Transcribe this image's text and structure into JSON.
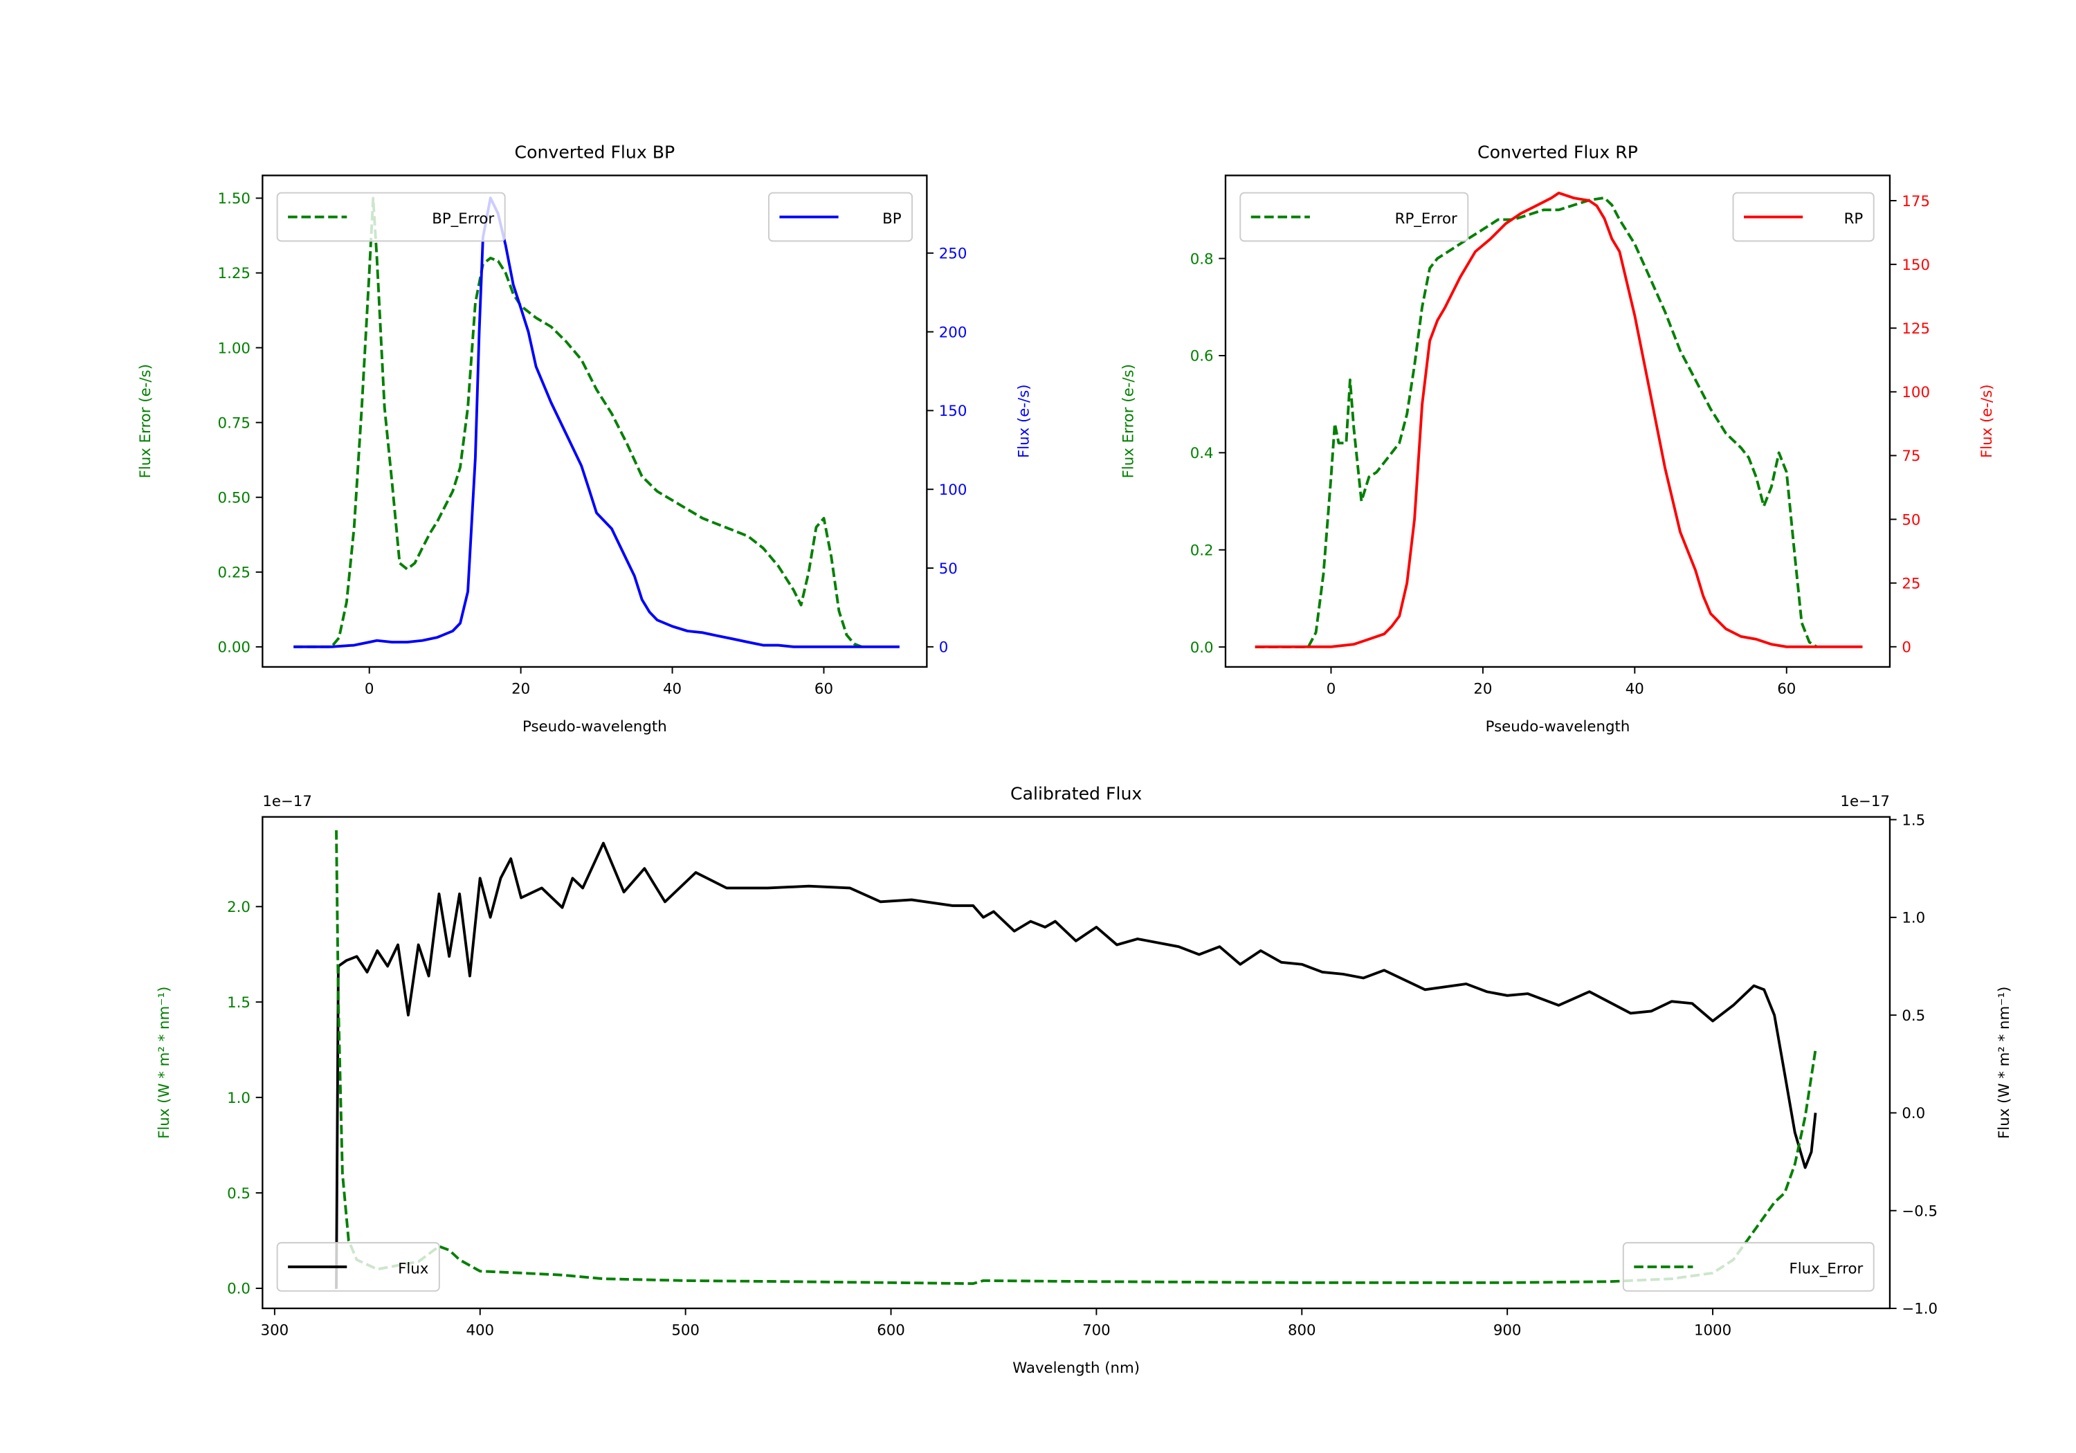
{
  "chart_data": [
    {
      "type": "line",
      "title": "Converted Flux BP",
      "xlabel": "Pseudo-wavelength",
      "ylabel_left": "Flux Error (e-/s)",
      "ylabel_right": "Flux (e-/s)",
      "xlim": [
        -14.1,
        73.6
      ],
      "ylim_left": [
        -0.067,
        1.576
      ],
      "ylim_right": [
        -12.75,
        299.3
      ],
      "xticks": [
        0,
        20,
        40,
        60
      ],
      "yticks_left": [
        "0.00",
        "0.25",
        "0.50",
        "0.75",
        "1.00",
        "1.25",
        "1.50"
      ],
      "yticks_right": [
        "0",
        "50",
        "100",
        "150",
        "200",
        "250"
      ],
      "left_color": "#008000",
      "right_color": "#0000ff",
      "series": [
        {
          "name": "BP_Error",
          "axis": "left",
          "style": "dashed",
          "color": "#008000",
          "x": [
            -10,
            -5,
            -4,
            -3,
            -2,
            -1,
            0,
            0.5,
            1,
            2,
            3,
            4,
            5,
            6,
            7,
            8,
            9,
            10,
            11,
            12,
            13,
            14,
            15,
            16,
            17,
            18,
            19,
            20,
            22,
            24,
            26,
            28,
            30,
            32,
            34,
            36,
            38,
            40,
            42,
            44,
            46,
            48,
            50,
            52,
            54,
            56,
            57,
            58,
            59,
            60,
            61,
            62,
            63,
            64,
            65
          ],
          "y": [
            0,
            0,
            0.03,
            0.15,
            0.4,
            0.8,
            1.25,
            1.5,
            1.3,
            0.8,
            0.55,
            0.28,
            0.26,
            0.28,
            0.33,
            0.38,
            0.42,
            0.47,
            0.52,
            0.6,
            0.8,
            1.15,
            1.28,
            1.3,
            1.29,
            1.25,
            1.18,
            1.14,
            1.1,
            1.07,
            1.02,
            0.96,
            0.86,
            0.78,
            0.68,
            0.57,
            0.52,
            0.49,
            0.46,
            0.43,
            0.41,
            0.39,
            0.37,
            0.33,
            0.27,
            0.19,
            0.14,
            0.25,
            0.4,
            0.43,
            0.3,
            0.12,
            0.04,
            0.01,
            0
          ]
        },
        {
          "name": "BP",
          "axis": "right",
          "style": "solid",
          "color": "#0000ff",
          "x": [
            -10,
            -5,
            -2,
            0,
            1,
            3,
            5,
            7,
            9,
            11,
            12,
            13,
            14,
            14.5,
            15,
            16,
            17,
            18,
            19,
            20,
            21,
            22,
            24,
            26,
            28,
            29,
            30,
            32,
            34,
            35,
            36,
            37,
            38,
            40,
            42,
            44,
            46,
            48,
            50,
            52,
            54,
            56,
            60,
            70
          ],
          "y": [
            0,
            0,
            1,
            3,
            4,
            3,
            3,
            4,
            6,
            10,
            15,
            35,
            120,
            200,
            260,
            285,
            275,
            255,
            230,
            215,
            200,
            178,
            155,
            135,
            115,
            100,
            85,
            75,
            55,
            45,
            30,
            22,
            17,
            13,
            10,
            9,
            7,
            5,
            3,
            1,
            1,
            0,
            0,
            0
          ]
        }
      ],
      "legend": [
        "top-left: BP_Error",
        "top-right: BP"
      ]
    },
    {
      "type": "line",
      "title": "Converted Flux RP",
      "xlabel": "Pseudo-wavelength",
      "ylabel_left": "Flux Error (e-/s)",
      "ylabel_right": "Flux (e-/s)",
      "xlim": [
        -13.9,
        73.6
      ],
      "ylim_left": [
        -0.041,
        0.971
      ],
      "ylim_right": [
        -7.9,
        184.9
      ],
      "xticks": [
        0,
        20,
        40,
        60
      ],
      "yticks_left": [
        "0.0",
        "0.2",
        "0.4",
        "0.6",
        "0.8"
      ],
      "yticks_right": [
        "0",
        "25",
        "50",
        "75",
        "100",
        "125",
        "150",
        "175"
      ],
      "left_color": "#008000",
      "right_color": "#ff0000",
      "series": [
        {
          "name": "RP_Error",
          "axis": "left",
          "style": "dashed",
          "color": "#008000",
          "x": [
            -10,
            -3,
            -2,
            -1,
            0,
            0.5,
            1,
            2,
            2.5,
            3,
            4,
            5,
            6,
            7,
            9,
            10,
            11,
            12,
            13,
            14,
            16,
            18,
            20,
            22,
            24,
            26,
            28,
            30,
            32,
            34,
            36,
            37,
            38,
            40,
            42,
            44,
            46,
            48,
            50,
            52,
            54,
            55,
            56,
            57,
            58,
            59,
            60,
            61,
            62,
            63,
            64
          ],
          "y": [
            0,
            0,
            0.03,
            0.15,
            0.35,
            0.46,
            0.42,
            0.42,
            0.55,
            0.45,
            0.3,
            0.35,
            0.36,
            0.38,
            0.42,
            0.48,
            0.58,
            0.7,
            0.78,
            0.8,
            0.82,
            0.84,
            0.86,
            0.88,
            0.88,
            0.89,
            0.9,
            0.9,
            0.91,
            0.92,
            0.925,
            0.91,
            0.88,
            0.83,
            0.76,
            0.69,
            0.61,
            0.55,
            0.49,
            0.44,
            0.41,
            0.39,
            0.35,
            0.29,
            0.33,
            0.4,
            0.36,
            0.2,
            0.05,
            0.01,
            0
          ]
        },
        {
          "name": "RP",
          "axis": "right",
          "style": "solid",
          "color": "#ff0000",
          "x": [
            -10,
            0,
            3,
            5,
            7,
            8,
            9,
            10,
            11,
            12,
            13,
            14,
            15,
            17,
            19,
            21,
            23,
            25,
            27,
            29,
            30,
            32,
            34,
            35,
            36,
            37,
            38,
            40,
            42,
            44,
            46,
            48,
            49,
            50,
            52,
            54,
            56,
            58,
            60,
            70
          ],
          "y": [
            0,
            0,
            1,
            3,
            5,
            8,
            12,
            25,
            50,
            95,
            120,
            128,
            133,
            145,
            155,
            160,
            166,
            170,
            173,
            176,
            178,
            176,
            175,
            173,
            168,
            160,
            155,
            130,
            100,
            70,
            45,
            30,
            20,
            13,
            7,
            4,
            3,
            1,
            0,
            0
          ]
        }
      ],
      "legend": [
        "top-left: RP_Error",
        "top-right: RP"
      ]
    },
    {
      "type": "line",
      "title": "Calibrated Flux",
      "xlabel": "Wavelength (nm)",
      "ylabel_left": "Flux (W * m² * nm⁻¹)",
      "ylabel_right": "Flux (W * m² * nm⁻¹)",
      "offset_left": "1e−17",
      "offset_right": "1e−17",
      "xlim": [
        294.1,
        1086.2
      ],
      "ylim_left": [
        -0.105,
        2.47
      ],
      "ylim_right": [
        -1.0,
        1.514
      ],
      "xticks": [
        300,
        400,
        500,
        600,
        700,
        800,
        900,
        1000
      ],
      "yticks_left": [
        "0.0",
        "0.5",
        "1.0",
        "1.5",
        "2.0"
      ],
      "yticks_right": [
        "−1.0",
        "−0.5",
        "0.0",
        "0.5",
        "1.0",
        "1.5"
      ],
      "left_color": "#008000",
      "right_color": "#000000",
      "series": [
        {
          "name": "Flux",
          "axis": "right",
          "style": "solid",
          "color": "#000000",
          "x": [
            330,
            331,
            335,
            340,
            345,
            350,
            355,
            360,
            365,
            370,
            375,
            380,
            385,
            390,
            395,
            400,
            405,
            410,
            415,
            420,
            430,
            440,
            445,
            450,
            460,
            470,
            480,
            490,
            505,
            520,
            540,
            560,
            580,
            595,
            610,
            630,
            640,
            645,
            650,
            660,
            668,
            675,
            680,
            690,
            700,
            710,
            720,
            740,
            750,
            760,
            770,
            780,
            790,
            800,
            810,
            820,
            830,
            840,
            860,
            880,
            890,
            900,
            910,
            925,
            940,
            960,
            970,
            980,
            990,
            1000,
            1010,
            1020,
            1025,
            1030,
            1035,
            1040,
            1045,
            1048,
            1050
          ],
          "y": [
            -0.9,
            0.75,
            0.78,
            0.8,
            0.72,
            0.83,
            0.75,
            0.86,
            0.5,
            0.86,
            0.7,
            1.12,
            0.8,
            1.12,
            0.7,
            1.2,
            1.0,
            1.2,
            1.3,
            1.1,
            1.15,
            1.05,
            1.2,
            1.15,
            1.38,
            1.13,
            1.25,
            1.08,
            1.23,
            1.15,
            1.15,
            1.16,
            1.15,
            1.08,
            1.09,
            1.06,
            1.06,
            1.0,
            1.03,
            0.93,
            0.98,
            0.95,
            0.98,
            0.88,
            0.95,
            0.86,
            0.89,
            0.85,
            0.81,
            0.85,
            0.76,
            0.83,
            0.77,
            0.76,
            0.72,
            0.71,
            0.69,
            0.73,
            0.63,
            0.66,
            0.62,
            0.6,
            0.61,
            0.55,
            0.62,
            0.51,
            0.52,
            0.57,
            0.56,
            0.47,
            0.55,
            0.65,
            0.63,
            0.5,
            0.2,
            -0.1,
            -0.28,
            -0.2,
            0.0
          ]
        },
        {
          "name": "Flux_Error",
          "axis": "left",
          "style": "dashed",
          "color": "#008000",
          "x": [
            330,
            331,
            333,
            336,
            340,
            350,
            360,
            370,
            380,
            385,
            390,
            400,
            420,
            440,
            460,
            500,
            550,
            600,
            640,
            645,
            700,
            800,
            900,
            950,
            980,
            1000,
            1010,
            1020,
            1030,
            1035,
            1040,
            1045,
            1050
          ],
          "y": [
            2.4,
            1.5,
            0.6,
            0.25,
            0.15,
            0.1,
            0.12,
            0.14,
            0.22,
            0.2,
            0.15,
            0.09,
            0.08,
            0.07,
            0.05,
            0.04,
            0.035,
            0.03,
            0.025,
            0.04,
            0.035,
            0.03,
            0.03,
            0.035,
            0.05,
            0.08,
            0.15,
            0.3,
            0.45,
            0.5,
            0.65,
            0.9,
            1.25
          ]
        }
      ],
      "legend": [
        "bottom-left: Flux",
        "bottom-right: Flux_Error"
      ]
    }
  ]
}
